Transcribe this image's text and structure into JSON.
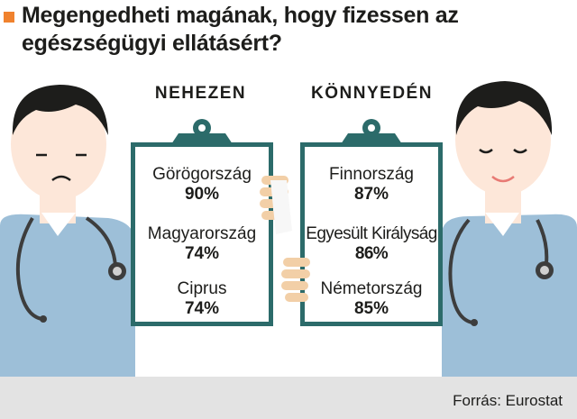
{
  "title": "Megengedheti magának, hogy fizessen az egészségügyi ellátásért?",
  "colors": {
    "accent": "#f0822e",
    "clipboard": "#2c6b6a",
    "scrubs": "#9dbfd8",
    "hair": "#1d1d1b",
    "skin": "#fde7d9"
  },
  "columns": [
    {
      "heading": "NEHEZEN",
      "items": [
        {
          "country": "Görögország",
          "value": "90%"
        },
        {
          "country": "Magyarország",
          "value": "74%"
        },
        {
          "country": "Ciprus",
          "value": "74%"
        }
      ]
    },
    {
      "heading": "KÖNNYEDÉN",
      "items": [
        {
          "country": "Finnország",
          "value": "87%"
        },
        {
          "country": "Egyesült Királyság",
          "value": "86%"
        },
        {
          "country": "Németország",
          "value": "85%"
        }
      ]
    }
  ],
  "source": "Forrás: Eurostat",
  "icons": [
    "sad-doctor-icon",
    "happy-doctor-icon",
    "stethoscope-icon",
    "clipboard-icon"
  ]
}
